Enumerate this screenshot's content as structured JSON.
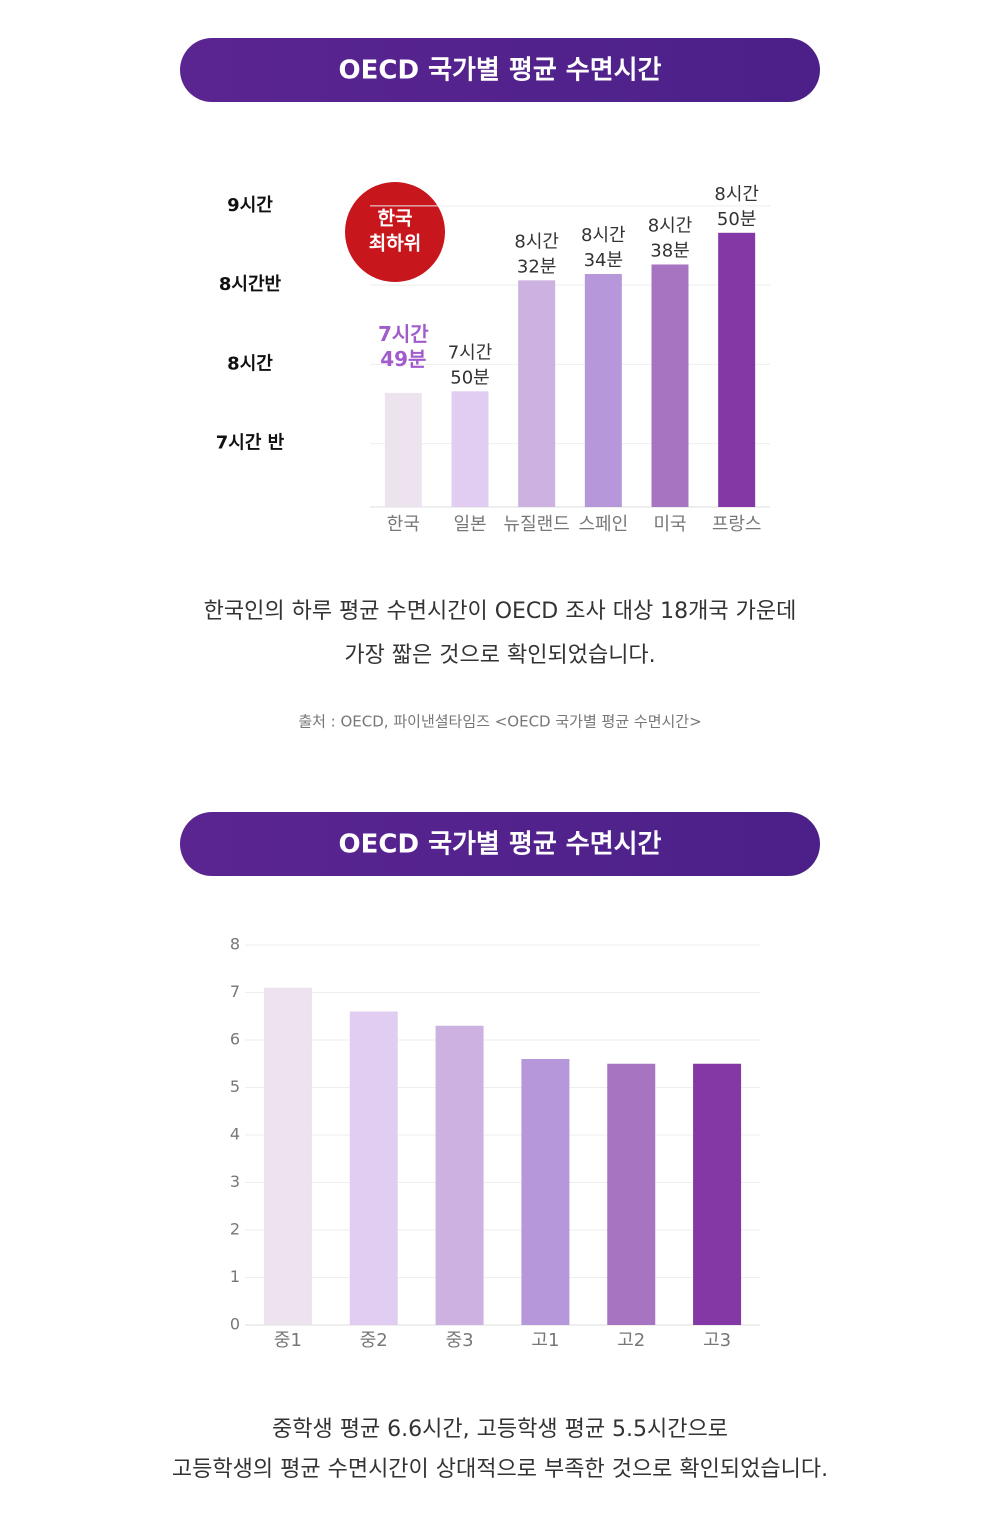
{
  "chart_data": [
    {
      "type": "bar",
      "title": "OECD 국가별 평균 수면시간",
      "categories": [
        "한국",
        "일본",
        "뉴질랜드",
        "스페인",
        "미국",
        "프랑스"
      ],
      "values": [
        7.82,
        7.83,
        8.53,
        8.57,
        8.63,
        8.83
      ],
      "value_labels": [
        "7시간 49분",
        "7시간 50분",
        "8시간 32분",
        "8시간 34분",
        "8시간 38분",
        "8시간 50분"
      ],
      "colors": [
        "#ede3ef",
        "#e2cdf2",
        "#cdb2e1",
        "#b597da",
        "#a674c0",
        "#8338a6"
      ],
      "highlight": "한국",
      "highlight_color": "#a15ccc",
      "annotation": [
        "한국",
        "최하위"
      ],
      "ylim": [
        7.1,
        9.1
      ],
      "yticks": [
        {
          "value": 9,
          "label": "9시간"
        },
        {
          "value": 8.5,
          "label": "8시간반"
        },
        {
          "value": 8,
          "label": "8시간"
        },
        {
          "value": 7.5,
          "label": "7시간 반"
        }
      ],
      "grid": true
    },
    {
      "type": "bar",
      "title": "OECD 국가별 평균 수면시간",
      "categories": [
        "중1",
        "중2",
        "중3",
        "고1",
        "고2",
        "고3"
      ],
      "values": [
        7.1,
        6.6,
        6.3,
        5.6,
        5.5,
        5.5
      ],
      "colors": [
        "#ede3ef",
        "#e2cdf2",
        "#cdb2e1",
        "#b597da",
        "#a674c0",
        "#8338a6"
      ],
      "ylim": [
        0,
        8
      ],
      "yticks": [
        0,
        1,
        2,
        3,
        4,
        5,
        6,
        7,
        8
      ],
      "grid": true
    }
  ],
  "sections": [
    {
      "caption": [
        "한국인의 하루 평균 수면시간이 OECD 조사 대상 18개국 가운데",
        "가장 짧은 것으로 확인되었습니다."
      ],
      "source": "출처 : OECD, 파이낸셜타임즈 <OECD 국가별 평균 수면시간>"
    },
    {
      "caption": [
        "중학생 평균 6.6시간, 고등학생 평균 5.5시간으로",
        "고등학생의 평균 수면시간이 상대적으로 부족한 것으로 확인되었습니다."
      ]
    }
  ]
}
